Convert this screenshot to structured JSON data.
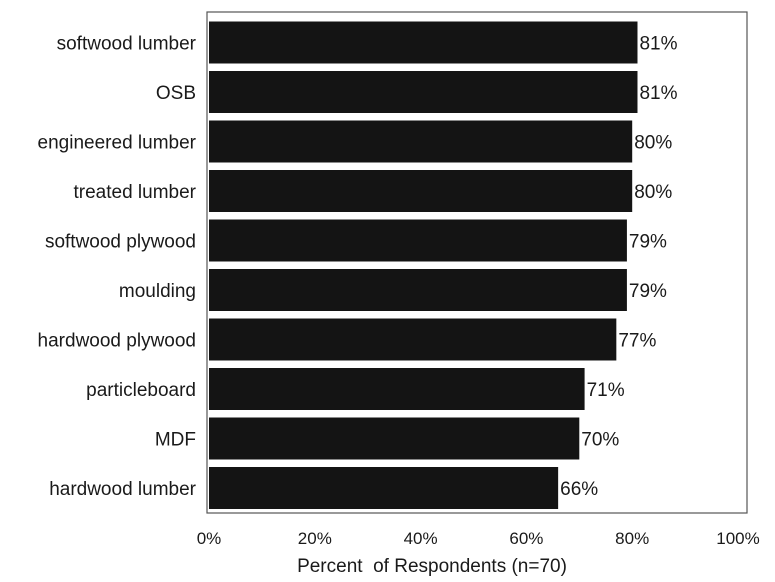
{
  "chart_data": {
    "type": "bar",
    "orientation": "horizontal",
    "categories": [
      "softwood lumber",
      "OSB",
      "engineered lumber",
      "treated lumber",
      "softwood plywood",
      "moulding",
      "hardwood plywood",
      "particleboard",
      "MDF",
      "hardwood lumber"
    ],
    "values": [
      81,
      81,
      80,
      80,
      79,
      79,
      77,
      71,
      70,
      66
    ],
    "data_labels": [
      "81%",
      "81%",
      "80%",
      "80%",
      "79%",
      "79%",
      "77%",
      "71%",
      "70%",
      "66%"
    ],
    "xlabel": "Percent  of Respondents (n=70)",
    "xlim": [
      0,
      100
    ],
    "xticks": [
      0,
      20,
      40,
      60,
      80,
      100
    ],
    "xtick_labels": [
      "0%",
      "20%",
      "40%",
      "60%",
      "80%",
      "100%"
    ],
    "grid": false,
    "colors": {
      "bar": "#141414",
      "frame": "#555555",
      "text": "#1a1a1a"
    }
  }
}
